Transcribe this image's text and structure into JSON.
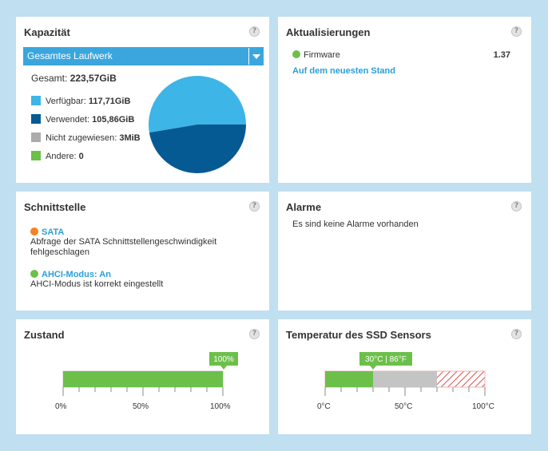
{
  "capacity": {
    "title": "Kapazität",
    "help": "?",
    "dropdown_label": "Gesamtes Laufwerk",
    "total_label": "Gesamt:",
    "total_value": "223,57GiB",
    "legend": [
      {
        "label": "Verfügbar:",
        "value": "117,71GiB",
        "color": "#3db5e6"
      },
      {
        "label": "Verwendet:",
        "value": "105,86GiB",
        "color": "#065a93"
      },
      {
        "label": "Nicht zugewiesen:",
        "value": "3MiB",
        "color": "#acacac"
      },
      {
        "label": "Andere:",
        "value": "0",
        "color": "#6cc04a"
      }
    ],
    "chart_data": {
      "type": "pie",
      "slices": [
        {
          "label": "Verfügbar",
          "value": 117.71,
          "color": "#3db5e6"
        },
        {
          "label": "Verwendet",
          "value": 105.86,
          "color": "#065a93"
        },
        {
          "label": "Nicht zugewiesen",
          "value": 0.003,
          "color": "#acacac"
        },
        {
          "label": "Andere",
          "value": 0,
          "color": "#6cc04a"
        }
      ]
    }
  },
  "updates": {
    "title": "Aktualisierungen",
    "help": "?",
    "firmware_label": "Firmware",
    "firmware_version": "1.37",
    "status_link": "Auf dem neuesten Stand",
    "status_color": "#6cc04a"
  },
  "interface": {
    "title": "Schnittstelle",
    "help": "?",
    "items": [
      {
        "title": "SATA",
        "color": "#f58220",
        "desc_line1": "Abfrage der SATA Schnittstellengeschwindigkeit",
        "desc_line2": "fehlgeschlagen"
      },
      {
        "title": "AHCI-Modus: An",
        "color": "#6cc04a",
        "desc_line1": "AHCI-Modus ist korrekt eingestellt",
        "desc_line2": ""
      }
    ]
  },
  "alarms": {
    "title": "Alarme",
    "help": "?",
    "message": "Es sind keine Alarme vorhanden"
  },
  "health": {
    "title": "Zustand",
    "help": "?",
    "badge": "100%",
    "level_percent": 100,
    "ticks": [
      "0%",
      "50%",
      "100%"
    ],
    "bar_color": "#6cc04a"
  },
  "temperature": {
    "title": "Temperatur des SSD Sensors",
    "help": "?",
    "badge": "30°C | 86°F",
    "value_celsius": 30,
    "grey_end_celsius": 70,
    "ticks": [
      "0°C",
      "50°C",
      "100°C"
    ],
    "bar_color": "#6cc04a",
    "grey_color": "#c4c4c4",
    "hatch_color": "#d9534f"
  }
}
